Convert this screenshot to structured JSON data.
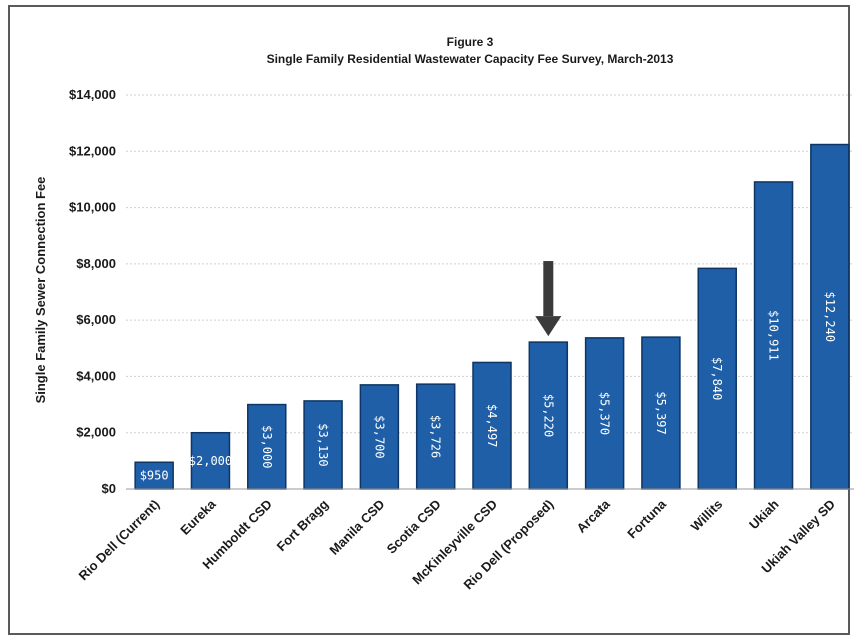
{
  "chart_data": {
    "type": "bar",
    "title": "Figure 3",
    "subtitle": "Single Family Residential Wastewater Capacity Fee Survey, March-2013",
    "ylabel": "Single Family Sewer Connection Fee",
    "xlabel": "",
    "ylim": [
      0,
      14000
    ],
    "yticks": [
      0,
      2000,
      4000,
      6000,
      8000,
      10000,
      12000,
      14000
    ],
    "ytick_labels": [
      "$0",
      "$2,000",
      "$4,000",
      "$6,000",
      "$8,000",
      "$10,000",
      "$12,000",
      "$14,000"
    ],
    "categories": [
      "Rio Dell (Current)",
      "Eureka",
      "Humboldt CSD",
      "Fort Bragg",
      "Manila CSD",
      "Scotia CSD",
      "McKinleyville CSD",
      "Rio Dell (Proposed)",
      "Arcata",
      "Fortuna",
      "Willits",
      "Ukiah",
      "Ukiah Valley SD"
    ],
    "values": [
      950,
      2000,
      3000,
      3130,
      3700,
      3726,
      4497,
      5220,
      5370,
      5397,
      7840,
      10911,
      12240
    ],
    "value_labels": [
      "$950",
      "$2,000",
      "$3,000",
      "$3,130",
      "$3,700",
      "$3,726",
      "$4,497",
      "$5,220",
      "$5,370",
      "$5,397",
      "$7,840",
      "$10,911",
      "$12,240"
    ],
    "grid": true,
    "legend": "none",
    "highlight_category": "Rio Dell (Proposed)",
    "colors": {
      "bar_fill": "#1f5fa8",
      "bar_stroke": "#0e3564",
      "arrow": "#3a3a3a",
      "grid": "#cfcfcf",
      "frame": "#5a5a5a"
    }
  }
}
